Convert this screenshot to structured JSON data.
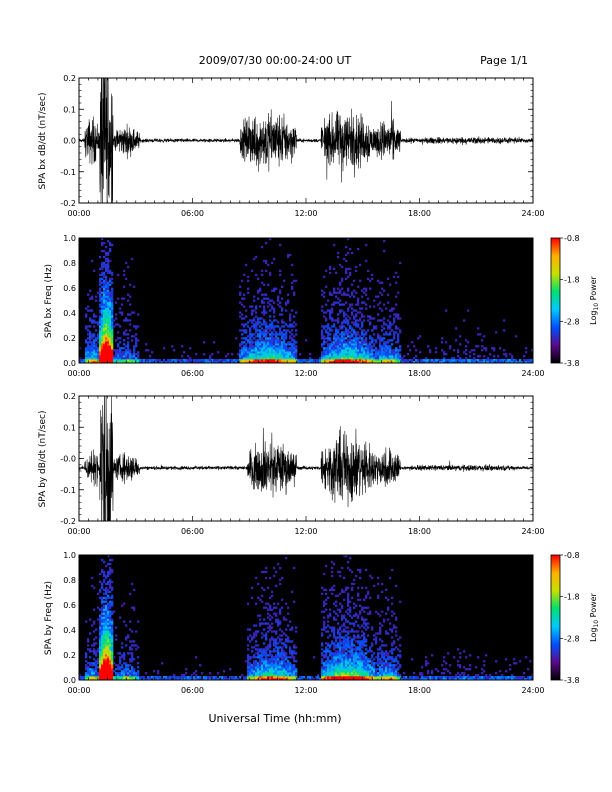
{
  "header": {
    "title": "2009/07/30  00:00-24:00 UT",
    "page": "Page 1/1"
  },
  "xlabel": "Universal Time (hh:mm)",
  "time_ticks": [
    "00:00",
    "06:00",
    "12:00",
    "18:00",
    "24:00"
  ],
  "colorbar": {
    "label": "Log",
    "label_sub": "10",
    "label_tail": " Power",
    "tick_labels": [
      "-0.8",
      "-1.8",
      "-2.8",
      "-3.8"
    ],
    "stops": [
      "#000000",
      "#5a0a8c",
      "#0050ff",
      "#00c8ff",
      "#00e070",
      "#c8e000",
      "#ffb000",
      "#ff0000"
    ]
  },
  "chart_data": [
    {
      "type": "line",
      "ylabel": "SPA bx dB/dt (nT/sec)",
      "x_range_hours": [
        0,
        24
      ],
      "ylim": [
        -0.2,
        0.2
      ],
      "y_ticks": [
        -0.2,
        -0.1,
        0.0,
        0.1,
        0.2
      ],
      "y_tick_labels": [
        "-0.2",
        "-0.1",
        "0.0",
        "0.1",
        "0.2"
      ],
      "baseline": 0.0,
      "activity": [
        {
          "start": 0.3,
          "end": 1.1,
          "amp": 0.08
        },
        {
          "start": 1.1,
          "end": 1.8,
          "amp": 0.4
        },
        {
          "start": 1.8,
          "end": 3.2,
          "amp": 0.05
        },
        {
          "start": 8.5,
          "end": 11.5,
          "amp": 0.1
        },
        {
          "start": 12.8,
          "end": 15.6,
          "amp": 0.1
        },
        {
          "start": 15.6,
          "end": 17.0,
          "amp": 0.07
        },
        {
          "start": 17.0,
          "end": 24.0,
          "amp": 0.012
        }
      ]
    },
    {
      "type": "heatmap",
      "ylabel": "SPA bx Freq (Hz)",
      "x_range_hours": [
        0,
        24
      ],
      "ylim": [
        0.0,
        1.0
      ],
      "y_ticks": [
        0.0,
        0.2,
        0.4,
        0.6,
        0.8,
        1.0
      ],
      "y_tick_labels": [
        "0.0",
        "0.2",
        "0.4",
        "0.6",
        "0.8",
        "1.0"
      ],
      "color_range_log10_power": [
        -3.8,
        -0.8
      ]
    },
    {
      "type": "line",
      "ylabel": "SPA by dB/dt (nT/sec)",
      "x_range_hours": [
        0,
        24
      ],
      "ylim": [
        -0.2,
        0.2
      ],
      "y_ticks": [
        -0.2,
        -0.1,
        0.0,
        0.1,
        0.2
      ],
      "y_tick_labels": [
        "-0.2",
        "-0.1",
        "-0.0",
        "0.1",
        "0.2"
      ],
      "baseline": -0.03,
      "activity": [
        {
          "start": 0.3,
          "end": 1.1,
          "amp": 0.06
        },
        {
          "start": 1.1,
          "end": 1.8,
          "amp": 0.4
        },
        {
          "start": 1.8,
          "end": 3.2,
          "amp": 0.05
        },
        {
          "start": 8.9,
          "end": 11.5,
          "amp": 0.09
        },
        {
          "start": 12.8,
          "end": 15.6,
          "amp": 0.12
        },
        {
          "start": 15.6,
          "end": 17.0,
          "amp": 0.07
        },
        {
          "start": 17.0,
          "end": 24.0,
          "amp": 0.01
        }
      ]
    },
    {
      "type": "heatmap",
      "ylabel": "SPA by Freq (Hz)",
      "x_range_hours": [
        0,
        24
      ],
      "ylim": [
        0.0,
        1.0
      ],
      "y_ticks": [
        0.0,
        0.2,
        0.4,
        0.6,
        0.8,
        1.0
      ],
      "y_tick_labels": [
        "0.0",
        "0.2",
        "0.4",
        "0.6",
        "0.8",
        "1.0"
      ],
      "color_range_log10_power": [
        -3.8,
        -0.8
      ]
    }
  ]
}
